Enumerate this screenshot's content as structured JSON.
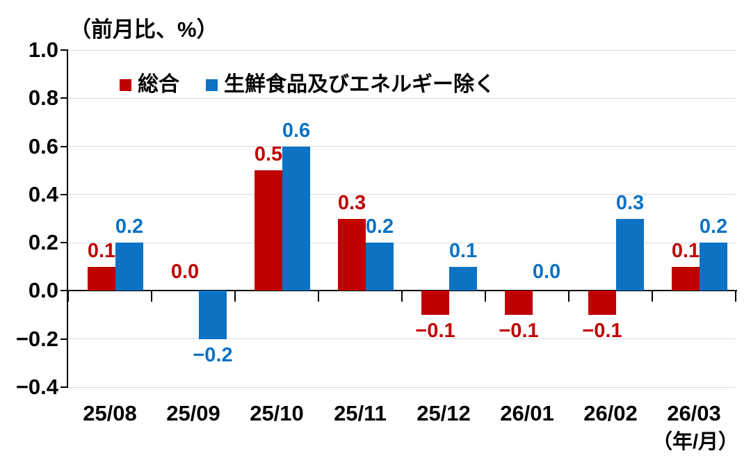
{
  "chart_data": {
    "type": "bar",
    "title": "（前月比、%）",
    "x_unit_label": "（年/月）",
    "categories": [
      "25/08",
      "25/09",
      "25/10",
      "25/11",
      "25/12",
      "26/01",
      "26/02",
      "26/03"
    ],
    "series": [
      {
        "name": "総合",
        "color": "#c00000",
        "values": [
          0.1,
          0.0,
          0.5,
          0.3,
          -0.1,
          -0.1,
          -0.1,
          0.1
        ]
      },
      {
        "name": "生鮮食品及びエネルギー除く",
        "color": "#0b72c4",
        "values": [
          0.2,
          -0.2,
          0.6,
          0.2,
          0.1,
          0.0,
          0.3,
          0.2
        ]
      }
    ],
    "ylim": [
      -0.4,
      1.0
    ],
    "y_ticks": [
      1.0,
      0.8,
      0.6,
      0.4,
      0.2,
      0.0,
      -0.2,
      -0.4
    ],
    "y_tick_labels": [
      "1.0",
      "0.8",
      "0.6",
      "0.4",
      "0.2",
      "0.0",
      "−0.2",
      "−0.4"
    ],
    "grid": true,
    "legend_position": "top-inside",
    "data_labels": true
  },
  "colors": {
    "grid": "#d9d9d9",
    "axis": "#000000",
    "text": "#000000",
    "background": "#ffffff"
  }
}
